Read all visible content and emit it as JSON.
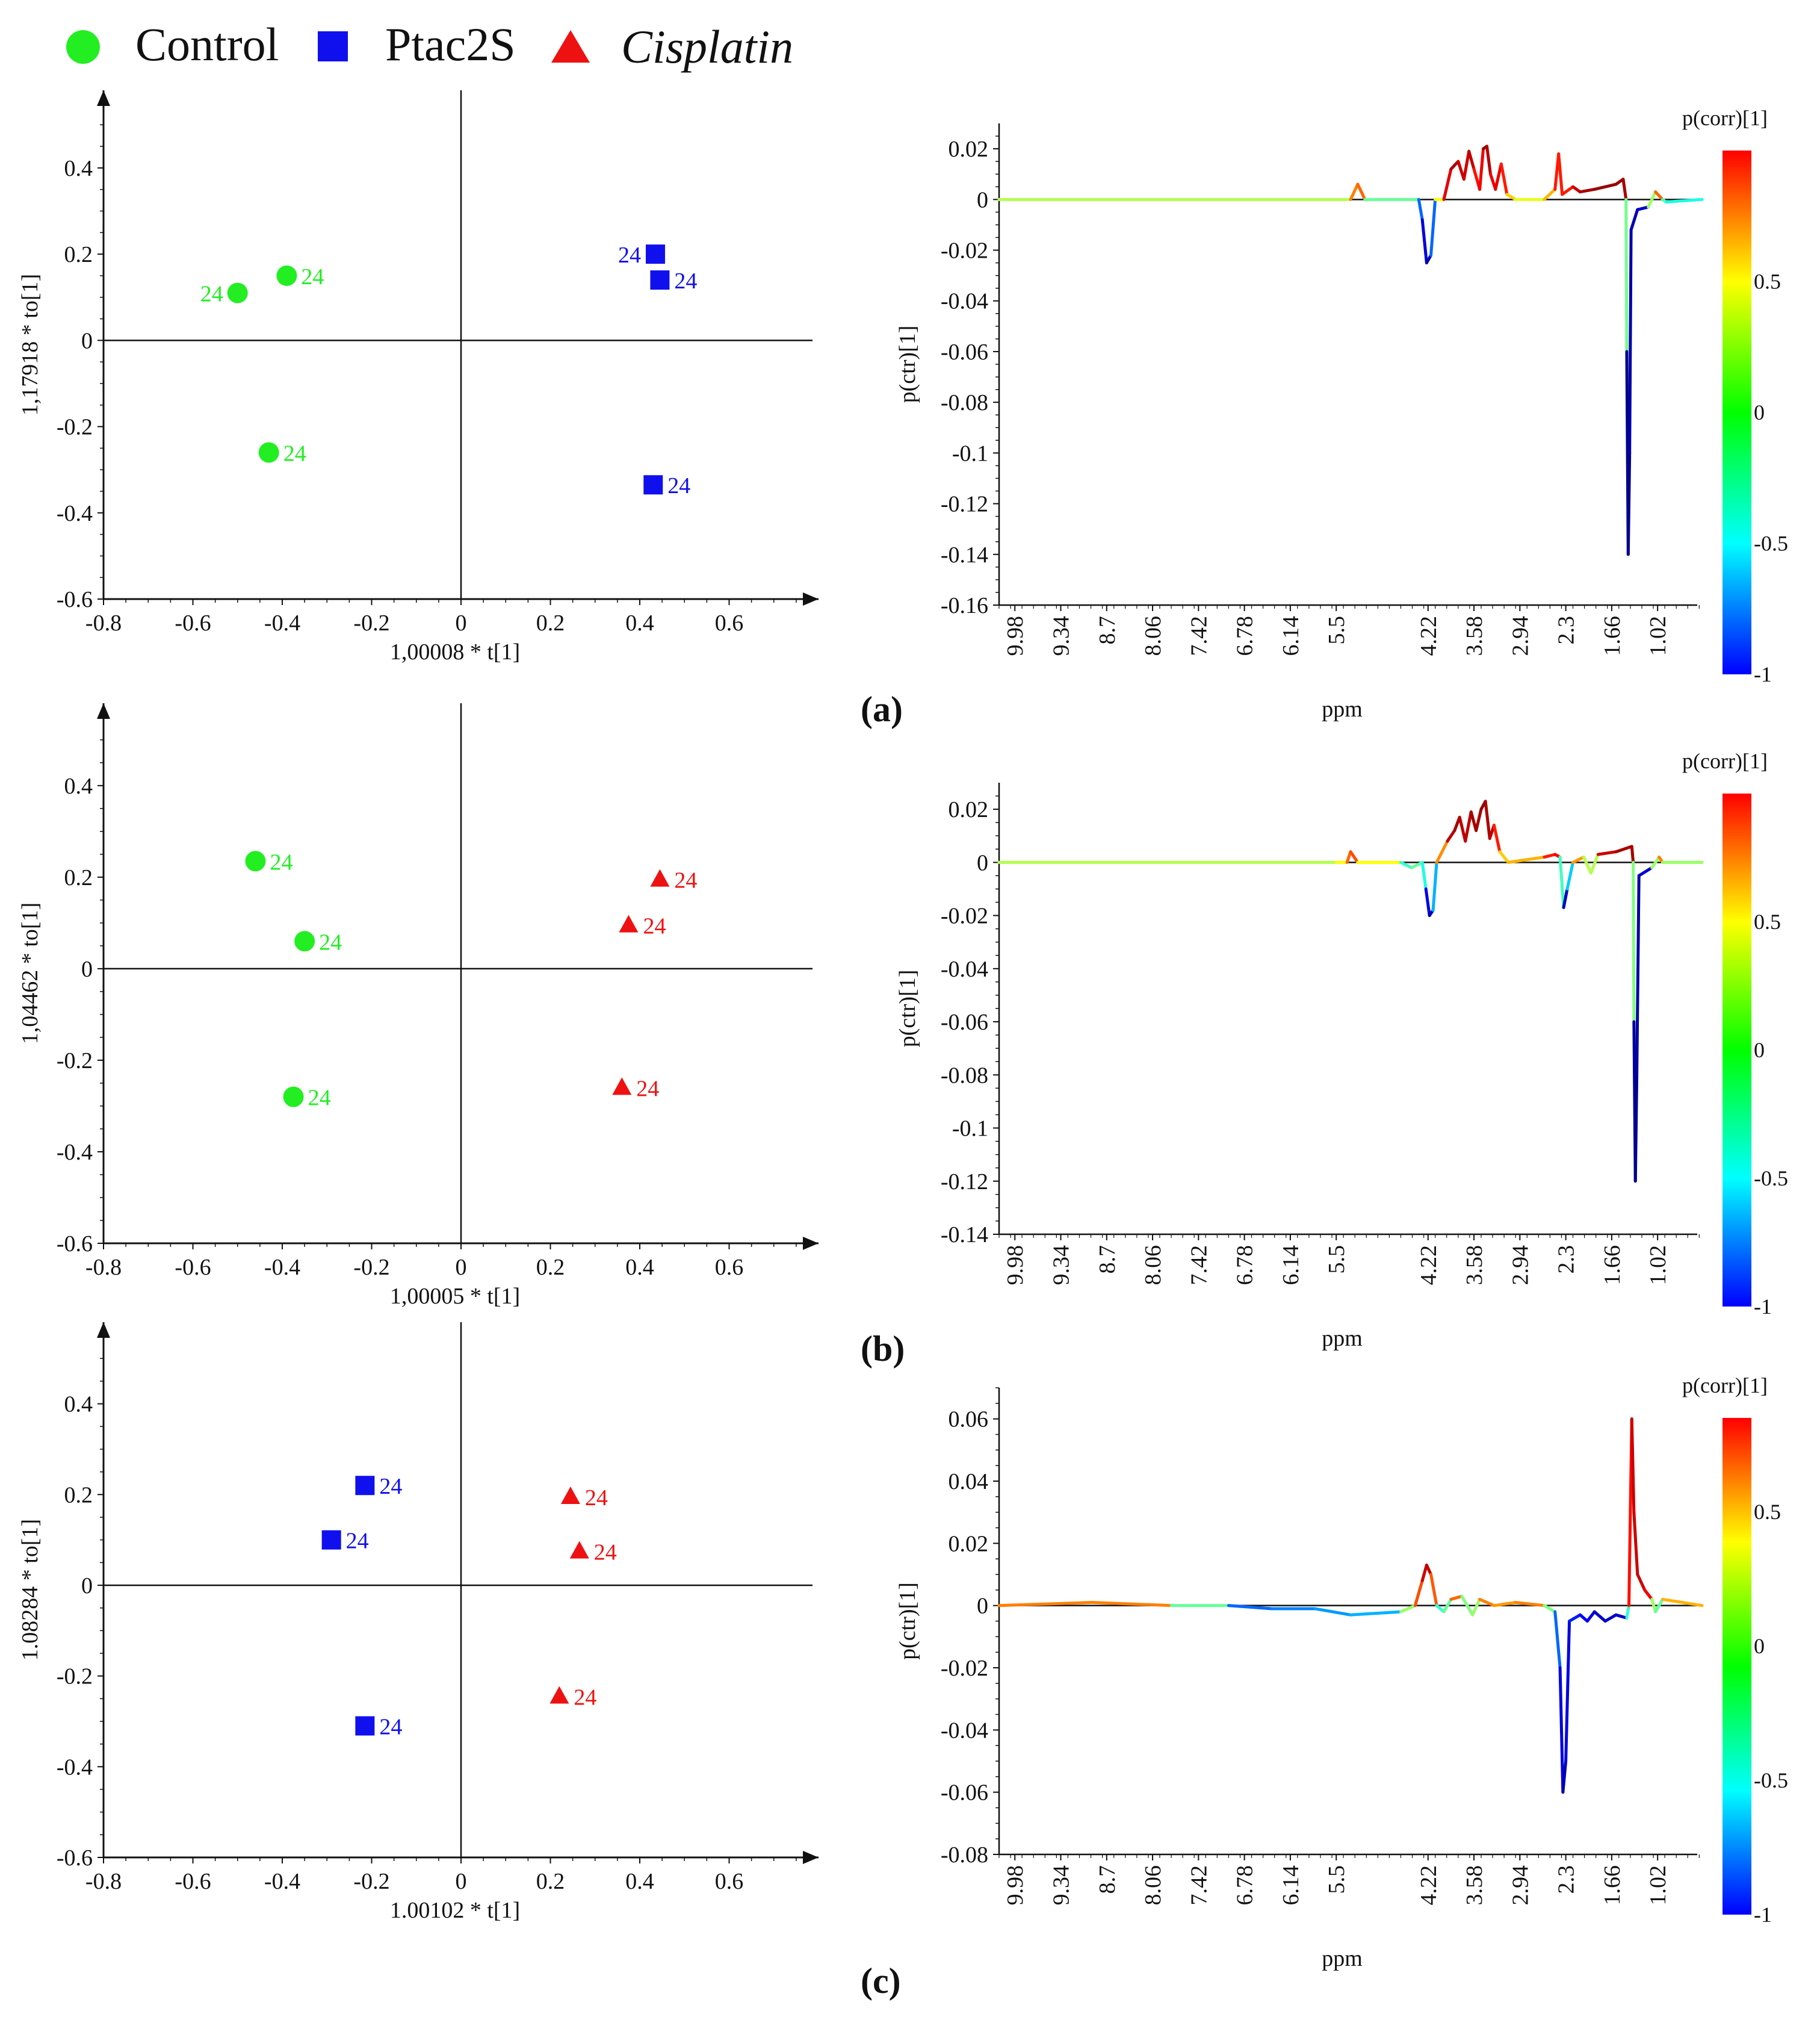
{
  "legend": [
    {
      "name": "Control",
      "marker": "circle",
      "color": "#22ee22",
      "italic": false
    },
    {
      "name": "Ptac2S",
      "marker": "square",
      "color": "#1010ee",
      "italic": false
    },
    {
      "name": "Cisplatin",
      "marker": "triangle",
      "color": "#ee1111",
      "italic": true
    }
  ],
  "colors": {
    "Control": "#22ee22",
    "Ptac2S": "#1010ee",
    "Cisplatin": "#ee1111"
  },
  "panels": [
    {
      "label": "(a)"
    },
    {
      "label": "(b)"
    },
    {
      "label": "(c)"
    }
  ],
  "chart_data": [
    {
      "type": "scatter",
      "panel": "(a)",
      "xlabel": "1,00008 * t[1]",
      "ylabel": "1,17918 * to[1]",
      "xlim": [
        -0.8,
        0.8
      ],
      "ylim": [
        -0.6,
        0.58
      ],
      "xticks": [
        -0.8,
        -0.6,
        -0.4,
        -0.2,
        0,
        0.2,
        0.4,
        0.6
      ],
      "yticks": [
        -0.6,
        -0.4,
        -0.2,
        0,
        0.2,
        0.4
      ],
      "series": [
        {
          "name": "Control",
          "points": [
            {
              "x": -0.5,
              "y": 0.11,
              "label": "24",
              "label_side": "left"
            },
            {
              "x": -0.39,
              "y": 0.15,
              "label": "24",
              "label_side": "right"
            },
            {
              "x": -0.43,
              "y": -0.26,
              "label": "24",
              "label_side": "right"
            }
          ]
        },
        {
          "name": "Ptac2S",
          "points": [
            {
              "x": 0.435,
              "y": 0.2,
              "label": "24",
              "label_side": "left"
            },
            {
              "x": 0.445,
              "y": 0.14,
              "label": "24",
              "label_side": "right"
            },
            {
              "x": 0.43,
              "y": -0.335,
              "label": "24",
              "label_side": "right"
            }
          ]
        }
      ]
    },
    {
      "type": "line",
      "panel": "(a)",
      "xlabel": "ppm",
      "ylabel": "p(ctr)[1]",
      "colorbar_title": "p(corr)[1]",
      "colorbar_ticks": [
        "0.5",
        "0",
        "-0.5",
        "-1"
      ],
      "colorbar_range": [
        -1,
        1
      ],
      "xticks": [
        "9.98",
        "9.34",
        "8.7",
        "8.06",
        "7.42",
        "6.78",
        "6.14",
        "5.5",
        "4.22",
        "3.58",
        "2.94",
        "2.3",
        "1.66",
        "1.02"
      ],
      "xlim": [
        10.2,
        0.3
      ],
      "yticks": [
        "0.02",
        "0",
        "-0.02",
        "-0.04",
        "-0.06",
        "-0.08",
        "-0.1",
        "-0.12",
        "-0.14",
        "-0.16"
      ],
      "ylim": [
        -0.16,
        0.03
      ],
      "spectrum": [
        [
          10.2,
          0,
          0
        ],
        [
          5.3,
          0,
          0.2
        ],
        [
          5.2,
          0.006,
          0.8
        ],
        [
          5.1,
          0,
          0.3
        ],
        [
          4.35,
          0,
          -0.4
        ],
        [
          4.3,
          -0.008,
          -0.7
        ],
        [
          4.24,
          -0.025,
          -0.95
        ],
        [
          4.18,
          -0.022,
          -0.9
        ],
        [
          4.12,
          0,
          -0.2
        ],
        [
          4.0,
          0,
          0.7
        ],
        [
          3.9,
          0.012,
          0.9
        ],
        [
          3.8,
          0.015,
          0.9
        ],
        [
          3.72,
          0.008,
          0.8
        ],
        [
          3.65,
          0.019,
          0.9
        ],
        [
          3.58,
          0.012,
          0.85
        ],
        [
          3.5,
          0.004,
          0.6
        ],
        [
          3.45,
          0.02,
          0.95
        ],
        [
          3.4,
          0.021,
          0.95
        ],
        [
          3.35,
          0.01,
          0.85
        ],
        [
          3.28,
          0.004,
          0.7
        ],
        [
          3.2,
          0.014,
          0.9
        ],
        [
          3.12,
          0.002,
          0.5
        ],
        [
          3.0,
          0,
          0.2
        ],
        [
          2.6,
          0,
          0.2
        ],
        [
          2.45,
          0.004,
          0.6
        ],
        [
          2.4,
          0.018,
          0.8
        ],
        [
          2.35,
          0.002,
          0.6
        ],
        [
          2.2,
          0.005,
          0.8
        ],
        [
          2.1,
          0.003,
          0.9
        ],
        [
          1.9,
          0.004,
          0.95
        ],
        [
          1.6,
          0.006,
          0.95
        ],
        [
          1.5,
          0.008,
          0.95
        ],
        [
          1.46,
          0,
          0.9
        ],
        [
          1.45,
          -0.06,
          -0.95
        ],
        [
          1.43,
          -0.14,
          -1
        ],
        [
          1.41,
          -0.1,
          -0.95
        ],
        [
          1.39,
          -0.012,
          -0.9
        ],
        [
          1.3,
          -0.004,
          -0.9
        ],
        [
          1.15,
          -0.003,
          -0.8
        ],
        [
          1.05,
          0.003,
          0.9
        ],
        [
          0.95,
          0,
          0.2
        ],
        [
          0.9,
          -0.001,
          -0.4
        ],
        [
          0.4,
          0,
          0
        ]
      ]
    },
    {
      "type": "scatter",
      "panel": "(b)",
      "xlabel": "1,00005 * t[1]",
      "ylabel": "1,04462 * to[1]",
      "xlim": [
        -0.8,
        0.8
      ],
      "ylim": [
        -0.6,
        0.58
      ],
      "xticks": [
        -0.8,
        -0.6,
        -0.4,
        -0.2,
        0,
        0.2,
        0.4,
        0.6
      ],
      "yticks": [
        -0.6,
        -0.4,
        -0.2,
        0,
        0.2,
        0.4
      ],
      "series": [
        {
          "name": "Control",
          "points": [
            {
              "x": -0.46,
              "y": 0.235,
              "label": "24",
              "label_side": "right"
            },
            {
              "x": -0.35,
              "y": 0.06,
              "label": "24",
              "label_side": "right"
            },
            {
              "x": -0.375,
              "y": -0.28,
              "label": "24",
              "label_side": "right"
            }
          ]
        },
        {
          "name": "Cisplatin",
          "points": [
            {
              "x": 0.445,
              "y": 0.195,
              "label": "24",
              "label_side": "right"
            },
            {
              "x": 0.375,
              "y": 0.095,
              "label": "24",
              "label_side": "right"
            },
            {
              "x": 0.36,
              "y": -0.26,
              "label": "24",
              "label_side": "right"
            }
          ]
        }
      ]
    },
    {
      "type": "line",
      "panel": "(b)",
      "xlabel": "ppm",
      "ylabel": "p(ctr)[1]",
      "colorbar_title": "p(corr)[1]",
      "colorbar_ticks": [
        "0.5",
        "0",
        "-0.5",
        "-1"
      ],
      "colorbar_range": [
        -1,
        1
      ],
      "xticks": [
        "9.98",
        "9.34",
        "8.7",
        "8.06",
        "7.42",
        "6.78",
        "6.14",
        "5.5",
        "4.22",
        "3.58",
        "2.94",
        "2.3",
        "1.66",
        "1.02"
      ],
      "xlim": [
        10.2,
        0.3
      ],
      "yticks": [
        "0.02",
        "0",
        "-0.02",
        "-0.04",
        "-0.06",
        "-0.08",
        "-0.1",
        "-0.12",
        "-0.14"
      ],
      "ylim": [
        -0.14,
        0.03
      ],
      "spectrum": [
        [
          10.2,
          0,
          0
        ],
        [
          5.5,
          0,
          0.2
        ],
        [
          5.35,
          0,
          0.3
        ],
        [
          5.3,
          0.004,
          0.8
        ],
        [
          5.2,
          0,
          0.4
        ],
        [
          4.6,
          0,
          0.1
        ],
        [
          4.45,
          -0.002,
          -0.4
        ],
        [
          4.3,
          0,
          0.3
        ],
        [
          4.25,
          -0.01,
          -0.7
        ],
        [
          4.2,
          -0.02,
          -0.9
        ],
        [
          4.15,
          -0.018,
          -0.9
        ],
        [
          4.1,
          0,
          0.1
        ],
        [
          3.95,
          0.008,
          0.85
        ],
        [
          3.85,
          0.012,
          0.9
        ],
        [
          3.78,
          0.017,
          0.95
        ],
        [
          3.7,
          0.008,
          0.8
        ],
        [
          3.62,
          0.019,
          0.95
        ],
        [
          3.55,
          0.012,
          0.9
        ],
        [
          3.48,
          0.02,
          0.95
        ],
        [
          3.42,
          0.023,
          0.97
        ],
        [
          3.36,
          0.009,
          0.85
        ],
        [
          3.3,
          0.014,
          0.9
        ],
        [
          3.22,
          0.004,
          0.5
        ],
        [
          3.1,
          0,
          0.2
        ],
        [
          2.6,
          0.002,
          0.6
        ],
        [
          2.45,
          0.003,
          0.8
        ],
        [
          2.38,
          0.002,
          0.7
        ],
        [
          2.33,
          -0.017,
          -0.95
        ],
        [
          2.28,
          -0.01,
          -0.8
        ],
        [
          2.2,
          0,
          0.1
        ],
        [
          2.05,
          0.002,
          0.8
        ],
        [
          1.95,
          -0.004,
          -0.6
        ],
        [
          1.85,
          0.003,
          0.8
        ],
        [
          1.6,
          0.004,
          0.9
        ],
        [
          1.38,
          0.006,
          0.95
        ],
        [
          1.36,
          0,
          0.9
        ],
        [
          1.35,
          -0.06,
          -0.9
        ],
        [
          1.33,
          -0.12,
          -1
        ],
        [
          1.31,
          -0.08,
          -0.95
        ],
        [
          1.28,
          -0.005,
          -0.9
        ],
        [
          1.1,
          -0.002,
          -0.8
        ],
        [
          1.0,
          0.002,
          0.9
        ],
        [
          0.95,
          0,
          0.1
        ],
        [
          0.4,
          0,
          0
        ]
      ]
    },
    {
      "type": "scatter",
      "panel": "(c)",
      "xlabel": "1.00102 * t[1]",
      "ylabel": "1.08284 * to[1]",
      "xlim": [
        -0.8,
        0.8
      ],
      "ylim": [
        -0.6,
        0.58
      ],
      "xticks": [
        -0.8,
        -0.6,
        -0.4,
        -0.2,
        0,
        0.2,
        0.4,
        0.6
      ],
      "yticks": [
        -0.6,
        -0.4,
        -0.2,
        0,
        0.2,
        0.4
      ],
      "series": [
        {
          "name": "Ptac2S",
          "points": [
            {
              "x": -0.215,
              "y": 0.22,
              "label": "24",
              "label_side": "right"
            },
            {
              "x": -0.29,
              "y": 0.1,
              "label": "24",
              "label_side": "right"
            },
            {
              "x": -0.215,
              "y": -0.31,
              "label": "24",
              "label_side": "right"
            }
          ]
        },
        {
          "name": "Cisplatin",
          "points": [
            {
              "x": 0.245,
              "y": 0.195,
              "label": "24",
              "label_side": "right"
            },
            {
              "x": 0.265,
              "y": 0.075,
              "label": "24",
              "label_side": "right"
            },
            {
              "x": 0.22,
              "y": -0.245,
              "label": "24",
              "label_side": "right"
            }
          ]
        }
      ]
    },
    {
      "type": "line",
      "panel": "(c)",
      "xlabel": "ppm",
      "ylabel": "p(ctr)[1]",
      "colorbar_title": "p(corr)[1]",
      "colorbar_ticks": [
        "0.5",
        "0",
        "-0.5",
        "-1"
      ],
      "colorbar_range": [
        -1,
        0.85
      ],
      "xticks": [
        "9.98",
        "9.34",
        "8.7",
        "8.06",
        "7.42",
        "6.78",
        "6.14",
        "5.5",
        "4.22",
        "3.58",
        "2.94",
        "2.3",
        "1.66",
        "1.02"
      ],
      "xlim": [
        10.2,
        0.3
      ],
      "yticks": [
        "0.06",
        "0.04",
        "0.02",
        "0",
        "-0.02",
        "-0.04",
        "-0.06",
        "-0.08"
      ],
      "ylim": [
        -0.08,
        0.07
      ],
      "spectrum": [
        [
          10.2,
          0,
          0.4
        ],
        [
          8.9,
          0.001,
          0.6
        ],
        [
          7.8,
          0,
          0.4
        ],
        [
          7.0,
          0,
          -0.5
        ],
        [
          6.4,
          -0.001,
          -0.6
        ],
        [
          5.8,
          -0.001,
          -0.4
        ],
        [
          5.3,
          -0.003,
          -0.5
        ],
        [
          4.6,
          -0.002,
          -0.3
        ],
        [
          4.4,
          0,
          0.4
        ],
        [
          4.3,
          0.008,
          0.8
        ],
        [
          4.24,
          0.013,
          0.9
        ],
        [
          4.18,
          0.01,
          0.85
        ],
        [
          4.1,
          0,
          0.3
        ],
        [
          4.0,
          -0.002,
          -0.6
        ],
        [
          3.9,
          0.002,
          0.5
        ],
        [
          3.75,
          0.003,
          0.6
        ],
        [
          3.6,
          -0.003,
          -0.6
        ],
        [
          3.5,
          0.002,
          0.7
        ],
        [
          3.3,
          0,
          0.3
        ],
        [
          3.0,
          0.001,
          0.6
        ],
        [
          2.6,
          0,
          0.4
        ],
        [
          2.45,
          -0.002,
          -0.4
        ],
        [
          2.38,
          -0.02,
          -0.7
        ],
        [
          2.34,
          -0.06,
          -0.9
        ],
        [
          2.3,
          -0.05,
          -0.9
        ],
        [
          2.25,
          -0.005,
          -0.7
        ],
        [
          2.1,
          -0.003,
          -0.7
        ],
        [
          2.0,
          -0.005,
          -0.8
        ],
        [
          1.9,
          -0.002,
          -0.8
        ],
        [
          1.75,
          -0.005,
          -0.9
        ],
        [
          1.6,
          -0.003,
          -0.8
        ],
        [
          1.45,
          -0.004,
          -0.9
        ],
        [
          1.42,
          0,
          0.6
        ],
        [
          1.38,
          0.06,
          0.85
        ],
        [
          1.35,
          0.03,
          0.85
        ],
        [
          1.3,
          0.01,
          0.85
        ],
        [
          1.2,
          0.005,
          0.85
        ],
        [
          1.1,
          0.002,
          0.7
        ],
        [
          1.05,
          -0.002,
          -0.6
        ],
        [
          0.95,
          0.002,
          0.5
        ],
        [
          0.4,
          0,
          0.3
        ]
      ]
    }
  ]
}
